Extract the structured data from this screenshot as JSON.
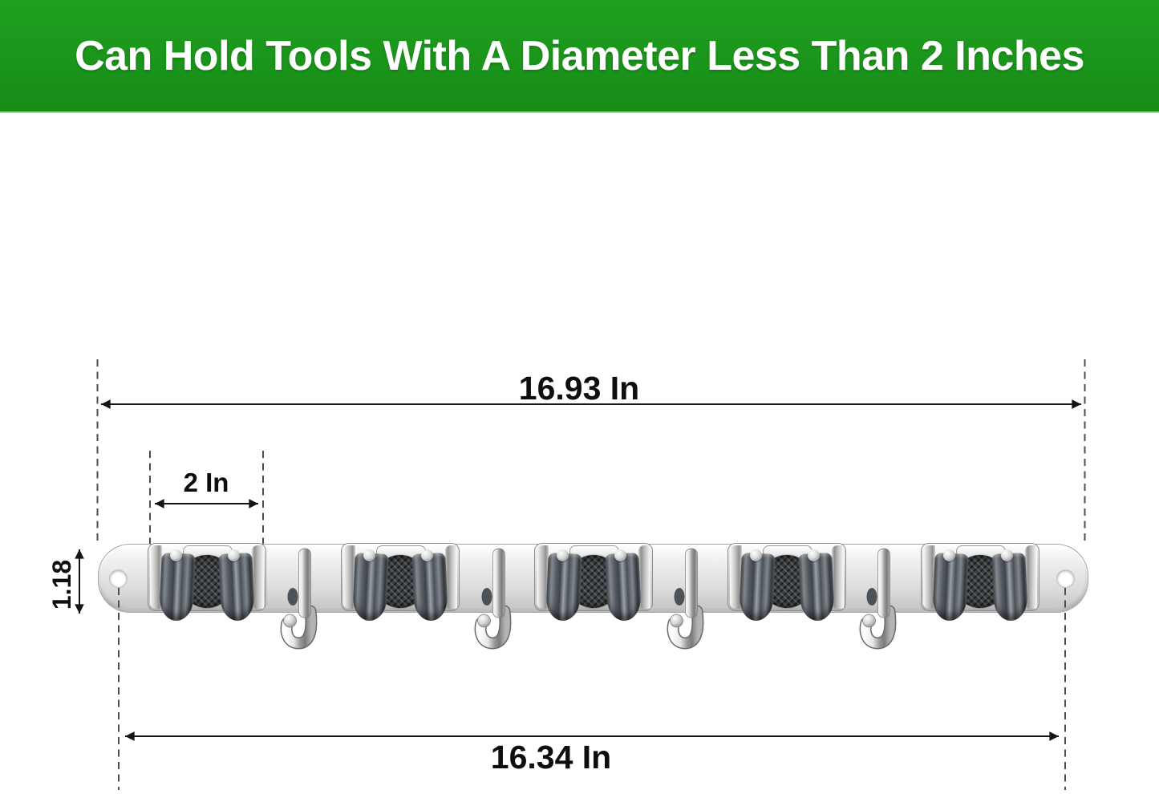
{
  "banner": {
    "text": "Can Hold Tools With A Diameter Less Than 2 Inches",
    "background_color": "#1b951b",
    "text_color": "#ffffff"
  },
  "dimensions": {
    "total_length_label": "16.93 In",
    "clamp_width_label": "2 In",
    "rail_height_label": "1.18",
    "hole_spacing_label": "16.34 In"
  },
  "product": {
    "description": "wall-mounted broom and mop holder rail with gripper clamps and fold hooks",
    "gripper_clamp_count": 5,
    "hook_count": 4,
    "mounting_hole_count": 2,
    "colors": {
      "chrome_light": "#f5f5f5",
      "chrome_dark": "#8f8f8f",
      "roller_gray": "#545a60",
      "grip_pad": "#3a3e41",
      "annotation": "#141414"
    }
  }
}
